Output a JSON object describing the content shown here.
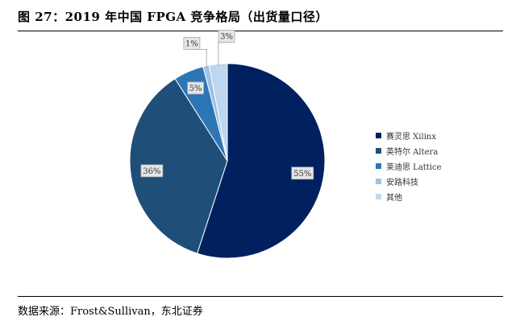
{
  "figure": {
    "title": "图 27：2019 年中国 FPGA 竞争格局（出货量口径）",
    "source": "数据来源：Frost&Sullivan，东北证券"
  },
  "chart_data": {
    "type": "pie",
    "slices": [
      {
        "label": "赛灵思 Xilinx",
        "value": 55,
        "display": "55%",
        "color": "#002060"
      },
      {
        "label": "英特尔 Altera",
        "value": 36,
        "display": "36%",
        "color": "#1f4e79"
      },
      {
        "label": "莱迪思 Lattice",
        "value": 5,
        "display": "5%",
        "color": "#2e75b6"
      },
      {
        "label": "安路科技",
        "value": 1,
        "display": "1%",
        "color": "#9dc3e6"
      },
      {
        "label": "其他",
        "value": 3,
        "display": "3%",
        "color": "#bdd7ee"
      }
    ],
    "legend_position": "right"
  }
}
